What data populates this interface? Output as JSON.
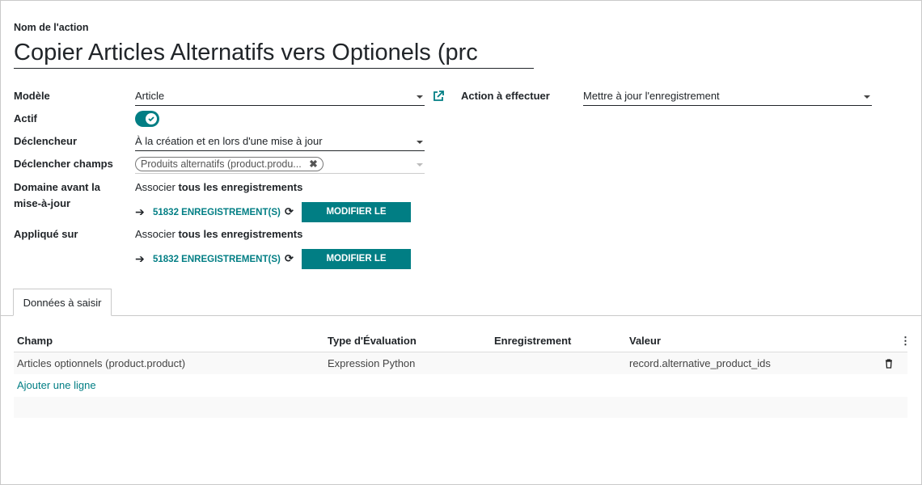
{
  "form": {
    "name_label": "Nom de l'action",
    "name_value": "Copier Articles Alternatifs vers Optionels (prc",
    "model_label": "Modèle",
    "model_value": "Article",
    "active_label": "Actif",
    "active_value": true,
    "trigger_label": "Déclencheur",
    "trigger_value": "À la création et en lors d'une mise à jour",
    "trigger_fields_label": "Déclencher champs",
    "trigger_fields_tag": "Produits alternatifs (product.produ...",
    "domain_before_label": "Domaine avant la mise-à-jour",
    "domain_before_text_prefix": "Associer ",
    "domain_before_text_bold": "tous les enregistrements",
    "domain_before_count": "51832 ENREGISTREMENT(S)",
    "domain_before_button": "MODIFIER LE DOMAINE",
    "applied_label": "Appliqué sur",
    "applied_text_prefix": "Associer ",
    "applied_text_bold": "tous les enregistrements",
    "applied_count": "51832 ENREGISTREMENT(S)",
    "applied_button": "MODIFIER LE DOMAINE",
    "action_label": "Action à effectuer",
    "action_value": "Mettre à jour l'enregistrement"
  },
  "tabs": [
    {
      "label": "Données à saisir",
      "active": true
    }
  ],
  "table": {
    "columns": [
      "Champ",
      "Type d'Évaluation",
      "Enregistrement",
      "Valeur"
    ],
    "rows": [
      [
        "Articles optionnels (product.product)",
        "Expression Python",
        "",
        "record.alternative_product_ids"
      ]
    ],
    "add_line": "Ajouter une ligne"
  },
  "colors": {
    "accent": "#017e84"
  }
}
